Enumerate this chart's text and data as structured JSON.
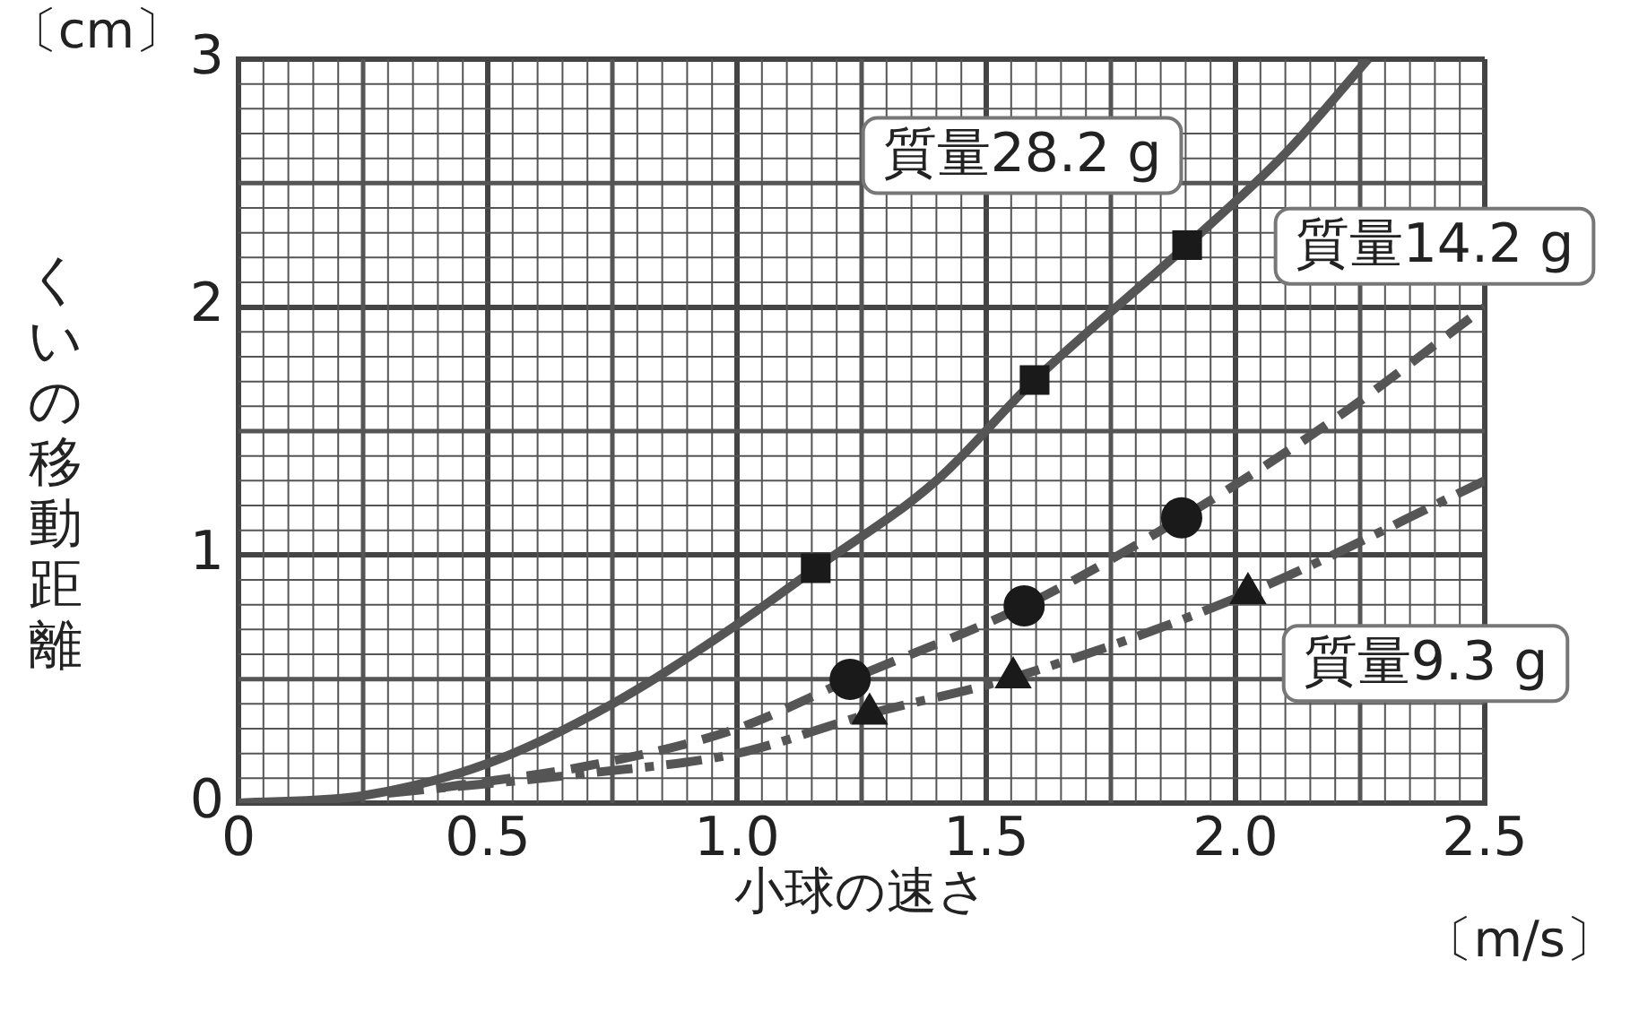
{
  "chart_data": {
    "type": "line",
    "xlabel": "小球の速さ",
    "ylabel": "くいの移動距離",
    "xlim": [
      0,
      2.5
    ],
    "ylim": [
      0,
      3
    ],
    "xticks": [
      0,
      0.5,
      {
        "value": 1,
        "label": "1.0"
      },
      1.5,
      {
        "value": 2,
        "label": "2.0"
      },
      2.5
    ],
    "yticks": [
      0,
      1,
      2,
      3
    ],
    "grid": true,
    "legend": false,
    "annotations": [
      "〔cm〕",
      "〔m/s〕"
    ],
    "series": [
      {
        "name": "質量28.2 g",
        "color": "#555555",
        "line_style": "solid",
        "marker": "none",
        "x": [
          0,
          0.25,
          0.5,
          0.75,
          1.0,
          1.158,
          1.4,
          1.597,
          1.903,
          2.1,
          2.266
        ],
        "values": [
          0,
          0.03,
          0.16,
          0.4,
          0.72,
          0.947,
          1.3,
          1.706,
          2.25,
          2.62,
          3
        ]
      },
      {
        "name": "質量14.2 g",
        "color": "#555555",
        "line_style": "dashed",
        "marker": "none",
        "x": [
          0.4,
          0.7,
          1.0,
          1.227,
          1.576,
          1.892,
          2.2,
          2.5
        ],
        "values": [
          0.06,
          0.15,
          0.3,
          0.499,
          0.795,
          1.15,
          1.55,
          2.0
        ]
      },
      {
        "name": "質量9.3 g",
        "color": "#555555",
        "line_style": "dashdot",
        "marker": "none",
        "x": [
          0.3,
          0.7,
          1.0,
          1.266,
          1.554,
          2.025,
          2.5
        ],
        "values": [
          0.04,
          0.12,
          0.2,
          0.36,
          0.506,
          0.846,
          1.3
        ]
      },
      {
        "type": "scatter",
        "color": "#1a1a1a",
        "marker": "square",
        "x": [
          1.158,
          1.597,
          1.903
        ],
        "values": [
          0.947,
          1.706,
          2.25
        ]
      },
      {
        "type": "scatter",
        "color": "#1a1a1a",
        "marker": "circle",
        "x": [
          1.227,
          1.576,
          1.892
        ],
        "values": [
          0.499,
          0.795,
          1.15
        ]
      },
      {
        "type": "scatter",
        "color": "#1a1a1a",
        "marker": "triangle",
        "x": [
          1.266,
          1.554,
          2.025
        ],
        "values": [
          0.36,
          0.506,
          0.846
        ]
      }
    ]
  }
}
